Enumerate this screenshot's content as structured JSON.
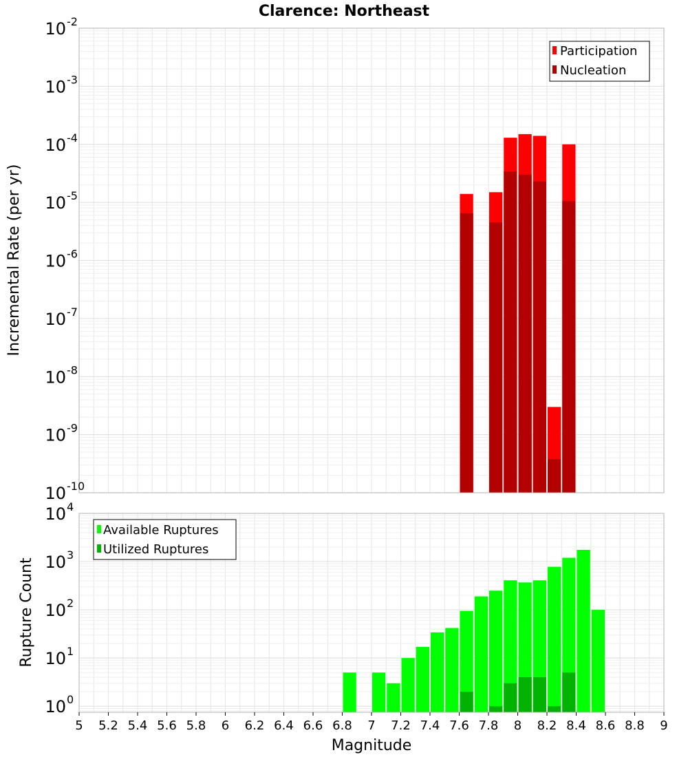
{
  "chart_data": [
    {
      "type": "bar",
      "title": "Clarence: Northeast",
      "xlabel": "Magnitude",
      "ylabel": "Incremental Rate (per yr)",
      "xlim": [
        5,
        9
      ],
      "ylim": [
        1e-10,
        0.01
      ],
      "yscale": "log",
      "yticks": [
        {
          "base": "10",
          "exp": "-10",
          "value": 1e-10
        },
        {
          "base": "10",
          "exp": "-9",
          "value": 1e-09
        },
        {
          "base": "10",
          "exp": "-8",
          "value": 1e-08
        },
        {
          "base": "10",
          "exp": "-7",
          "value": 1e-07
        },
        {
          "base": "10",
          "exp": "-6",
          "value": 1e-06
        },
        {
          "base": "10",
          "exp": "-5",
          "value": 1e-05
        },
        {
          "base": "10",
          "exp": "-4",
          "value": 0.0001
        },
        {
          "base": "10",
          "exp": "-3",
          "value": 0.001
        },
        {
          "base": "10",
          "exp": "-2",
          "value": 0.01
        }
      ],
      "legend_position": "top-right",
      "grid": true,
      "series": [
        {
          "name": "Participation",
          "color": "#ff0000",
          "x": [
            7.65,
            7.85,
            7.95,
            8.05,
            8.15,
            8.25,
            8.35
          ],
          "values": [
            1.4e-05,
            1.5e-05,
            0.00013,
            0.00015,
            0.00014,
            3e-09,
            0.0001
          ]
        },
        {
          "name": "Nucleation",
          "color": "#b30000",
          "x": [
            7.65,
            7.85,
            7.95,
            8.05,
            8.15,
            8.25,
            8.35
          ],
          "values": [
            6.5e-06,
            4.5e-06,
            3.4e-05,
            3e-05,
            2.3e-05,
            3.8e-10,
            1.05e-05
          ]
        }
      ]
    },
    {
      "type": "bar",
      "xlabel": "Magnitude",
      "ylabel": "Rupture Count",
      "xlim": [
        5,
        9
      ],
      "ylim": [
        0.75,
        10000
      ],
      "yscale": "log",
      "yticks": [
        {
          "base": "10",
          "exp": "0",
          "value": 1
        },
        {
          "base": "10",
          "exp": "1",
          "value": 10
        },
        {
          "base": "10",
          "exp": "2",
          "value": 100
        },
        {
          "base": "10",
          "exp": "3",
          "value": 1000
        },
        {
          "base": "10",
          "exp": "4",
          "value": 10000
        }
      ],
      "xticks": [
        "5",
        "5.2",
        "5.4",
        "5.6",
        "5.8",
        "6",
        "6.2",
        "6.4",
        "6.6",
        "6.8",
        "7",
        "7.2",
        "7.4",
        "7.6",
        "7.8",
        "8",
        "8.2",
        "8.4",
        "8.6",
        "8.8",
        "9"
      ],
      "legend_position": "top-left",
      "grid": true,
      "series": [
        {
          "name": "Available Ruptures",
          "color": "#00ff00",
          "x": [
            6.85,
            7.05,
            7.15,
            7.25,
            7.35,
            7.45,
            7.55,
            7.65,
            7.75,
            7.85,
            7.95,
            8.05,
            8.15,
            8.25,
            8.35,
            8.45,
            8.55
          ],
          "values": [
            5,
            5,
            3,
            10,
            17,
            34,
            42,
            95,
            190,
            250,
            410,
            370,
            410,
            780,
            1200,
            1750,
            100
          ]
        },
        {
          "name": "Utilized Ruptures",
          "color": "#00b300",
          "x": [
            7.65,
            7.85,
            7.95,
            8.05,
            8.15,
            8.25,
            8.35
          ],
          "values": [
            2,
            1,
            3,
            4,
            4,
            1,
            5
          ]
        }
      ]
    }
  ]
}
